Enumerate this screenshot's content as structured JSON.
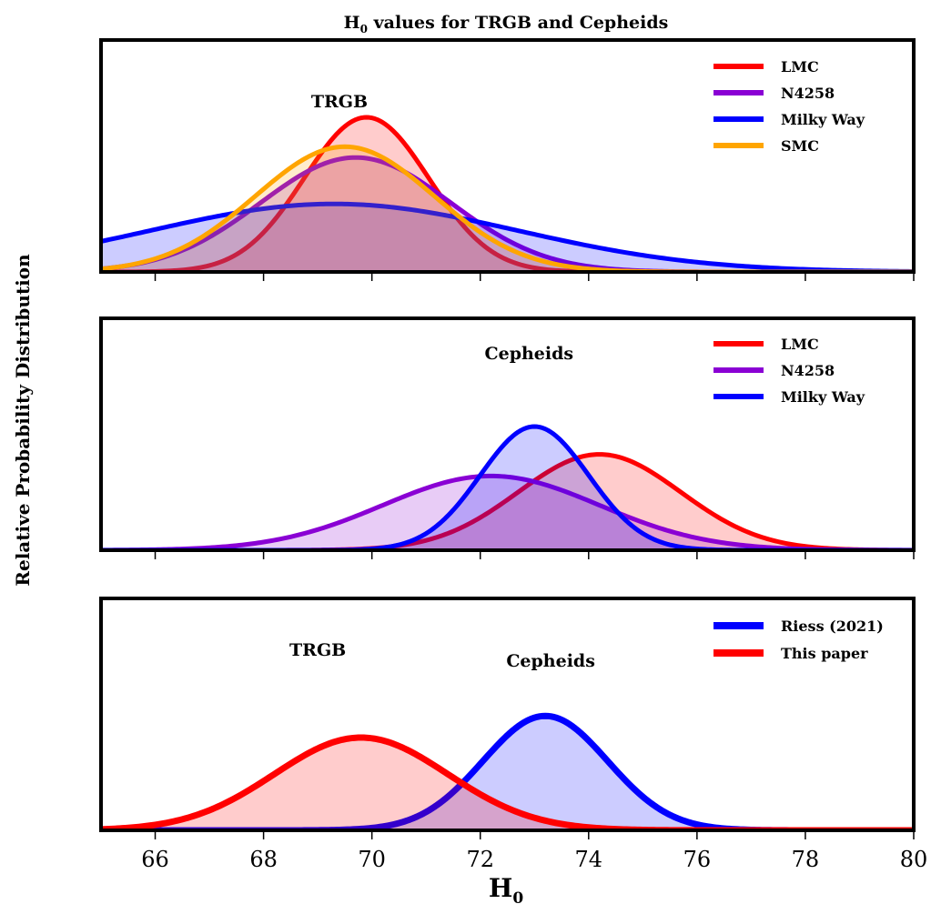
{
  "chart_data": {
    "title": "H0 values for TRGB and Cepheids",
    "ylabel": "Relative Probability Distribution",
    "xlabel": "H0",
    "xlim": [
      65,
      80
    ],
    "xticks": [
      66,
      68,
      70,
      72,
      74,
      76,
      78,
      80
    ],
    "panels": [
      {
        "type": "area",
        "annotations": [
          {
            "text": "TRGB",
            "x": 69.4
          }
        ],
        "legend_position": "top-right",
        "series": [
          {
            "name": "LMC",
            "color": "#ff0000",
            "mean": 69.9,
            "sigma": 1.15,
            "peak": 1.0
          },
          {
            "name": "N4258",
            "color": "#8a00d4",
            "mean": 69.7,
            "sigma": 1.75,
            "peak": 0.74
          },
          {
            "name": "Milky Way",
            "color": "#0000ff",
            "mean": 69.3,
            "sigma": 3.4,
            "peak": 0.44
          },
          {
            "name": "SMC",
            "color": "#ffa500",
            "mean": 69.5,
            "sigma": 1.65,
            "peak": 0.81
          }
        ]
      },
      {
        "type": "area",
        "annotations": [
          {
            "text": "Cepheids",
            "x": 72.9
          }
        ],
        "legend_position": "top-right",
        "series": [
          {
            "name": "LMC",
            "color": "#ff0000",
            "mean": 74.2,
            "sigma": 1.5,
            "peak": 0.62
          },
          {
            "name": "N4258",
            "color": "#8a00d4",
            "mean": 72.2,
            "sigma": 2.0,
            "peak": 0.48
          },
          {
            "name": "Milky Way",
            "color": "#0000ff",
            "mean": 73.0,
            "sigma": 1.0,
            "peak": 0.8
          }
        ]
      },
      {
        "type": "area",
        "annotations": [
          {
            "text": "TRGB",
            "x": 69.0
          },
          {
            "text": "Cepheids",
            "x": 73.3
          }
        ],
        "legend_position": "top-right",
        "series": [
          {
            "name": "Riess (2021)",
            "color": "#0000ff",
            "mean": 73.2,
            "sigma": 1.15,
            "peak": 0.74
          },
          {
            "name": "This paper",
            "color": "#ff0000",
            "mean": 69.8,
            "sigma": 1.6,
            "peak": 0.6
          }
        ]
      }
    ]
  }
}
